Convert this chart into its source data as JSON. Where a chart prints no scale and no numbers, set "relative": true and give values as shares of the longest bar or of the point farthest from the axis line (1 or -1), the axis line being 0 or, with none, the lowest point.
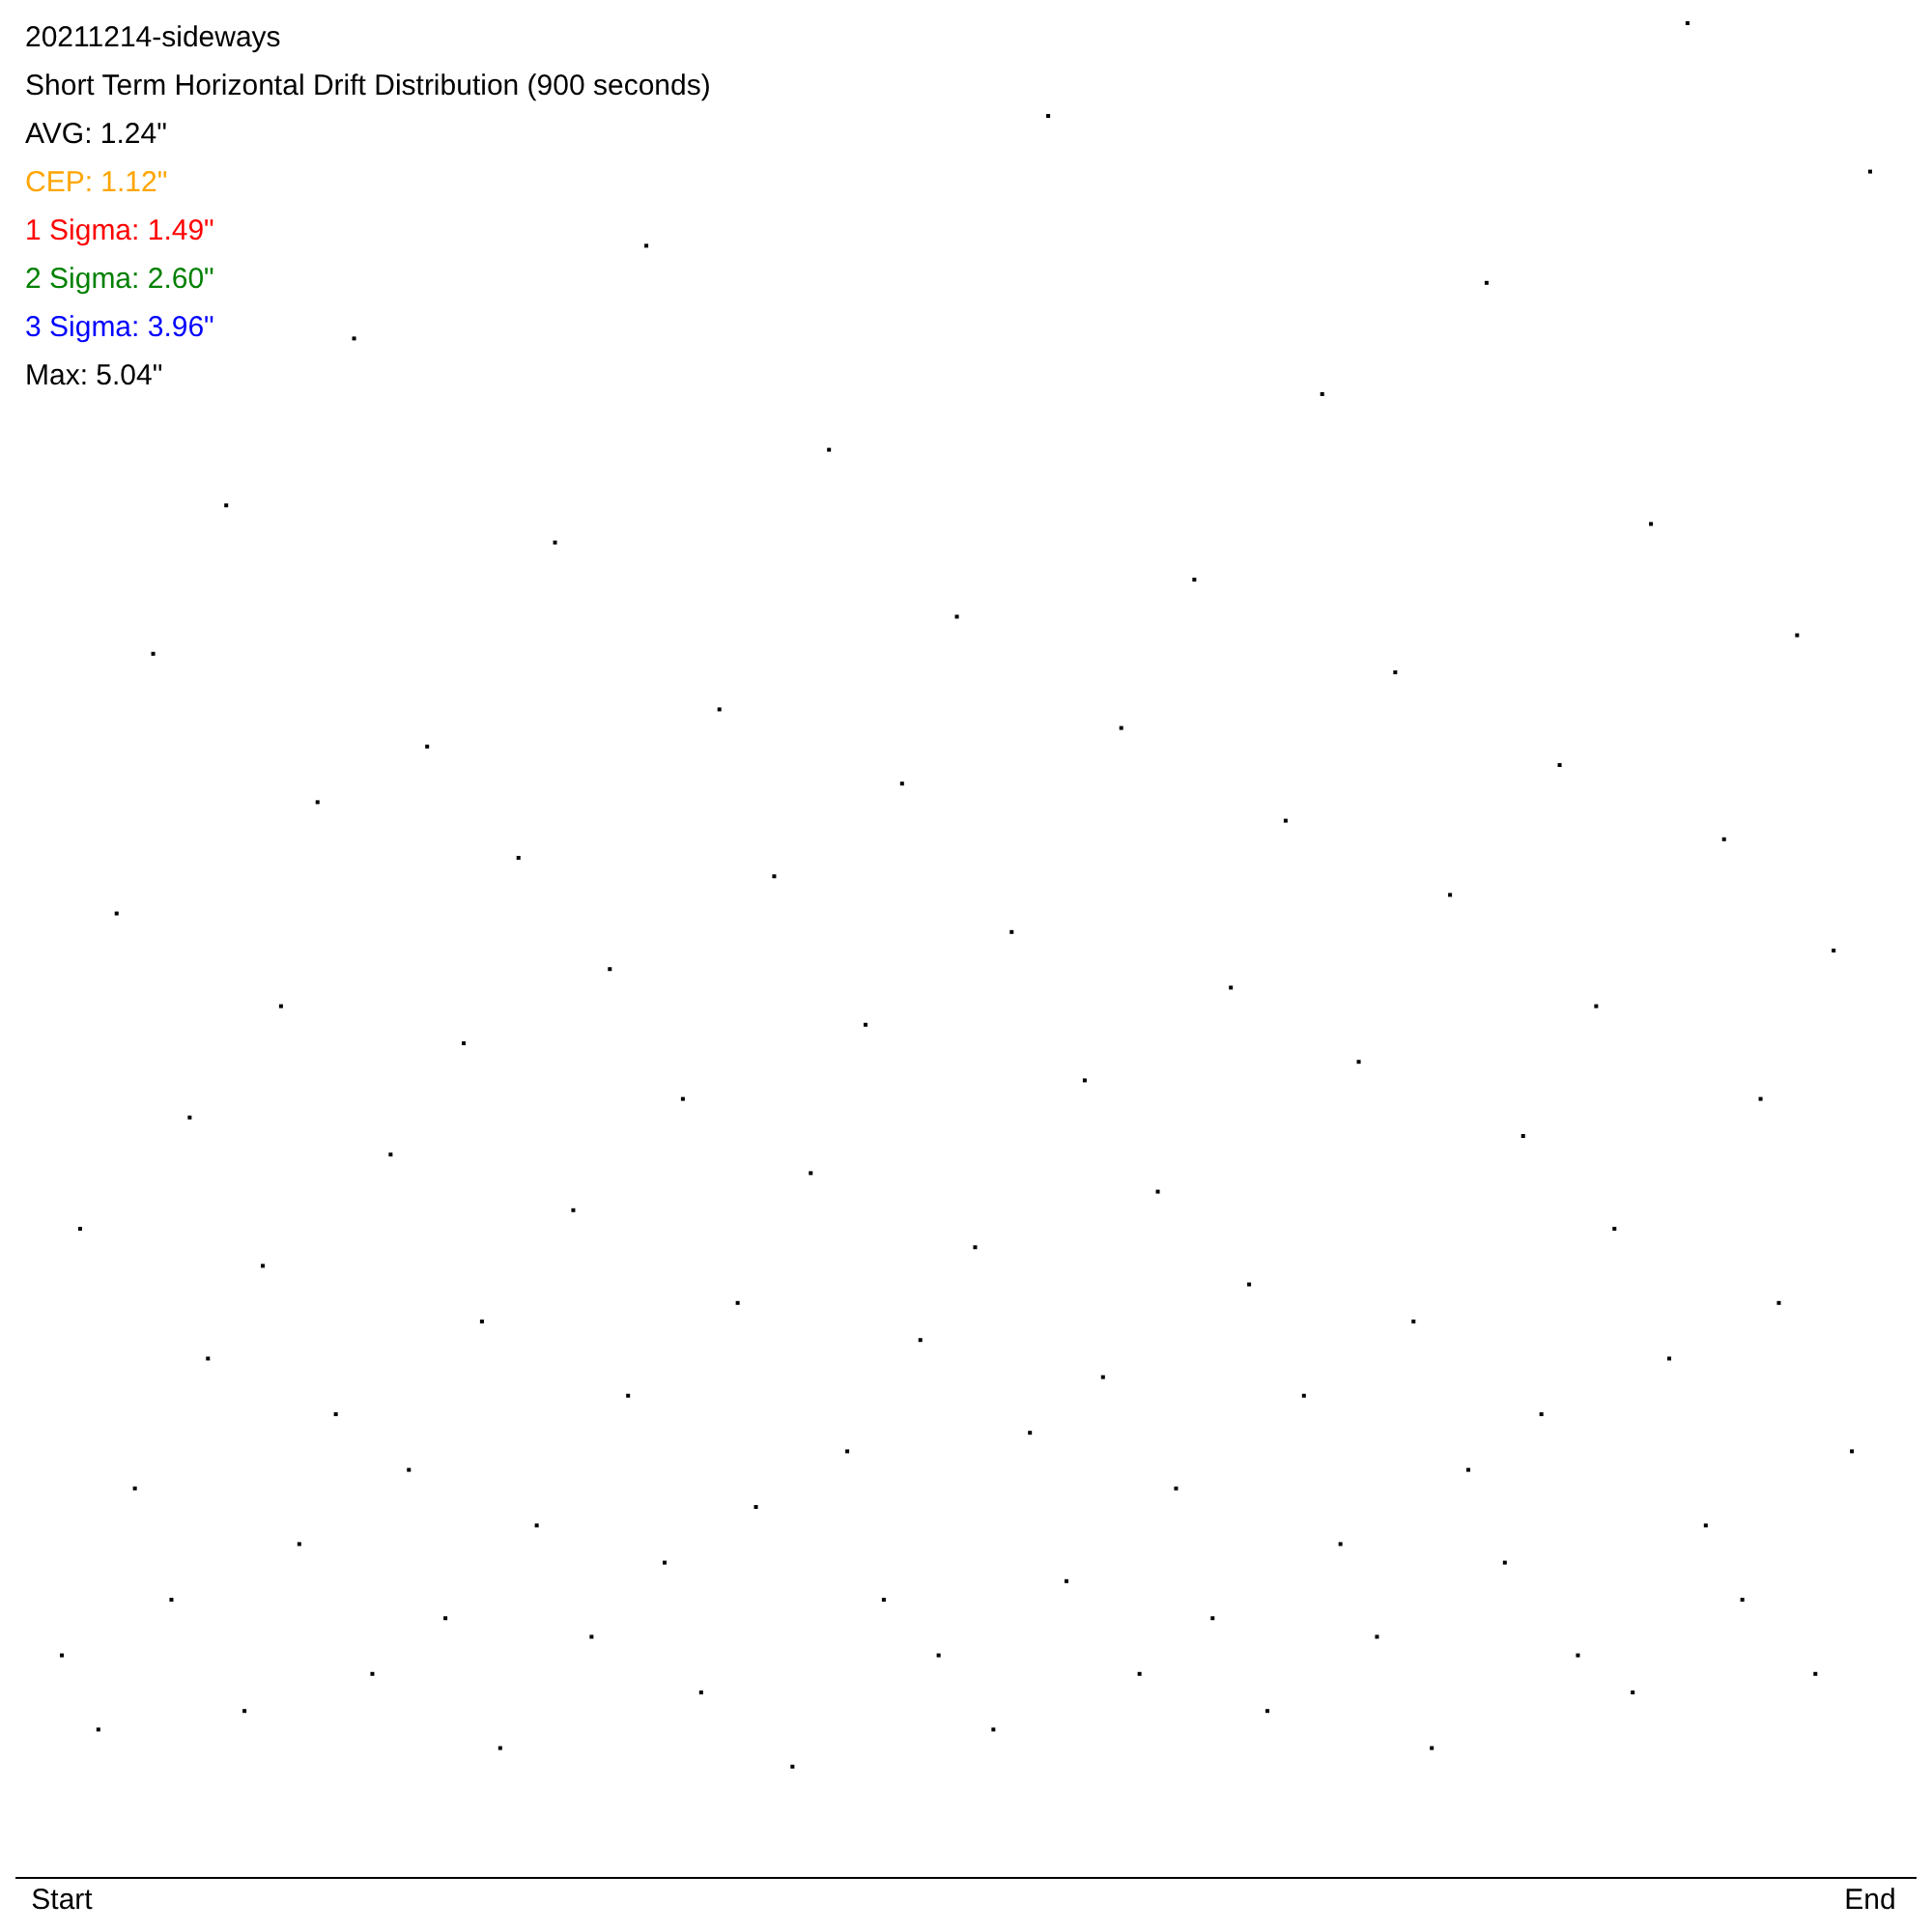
{
  "chart_data": {
    "type": "scatter",
    "title": "20211214-sideways",
    "subtitle": "Short Term Horizontal Drift Distribution (900 seconds)",
    "annotations": [
      "AVG: 1.24\"",
      "CEP: 1.12\"",
      "1 Sigma: 1.49\"",
      "2 Sigma: 2.60\"",
      "3 Sigma: 3.96\"",
      "Max: 5.04\""
    ],
    "relative": true,
    "marker": "square",
    "categories": [
      "Start",
      null,
      null,
      null,
      null,
      null,
      null,
      null,
      null,
      null,
      null,
      null,
      null,
      null,
      null,
      null,
      null,
      null,
      null,
      null,
      null,
      null,
      null,
      null,
      null,
      null,
      null,
      null,
      null,
      null,
      null,
      null,
      null,
      null,
      null,
      null,
      null,
      null,
      null,
      null,
      null,
      null,
      null,
      null,
      null,
      null,
      null,
      null,
      null,
      null,
      null,
      null,
      null,
      null,
      null,
      null,
      null,
      null,
      null,
      null,
      null,
      null,
      null,
      null,
      null,
      null,
      null,
      null,
      null,
      null,
      null,
      null,
      null,
      null,
      null,
      null,
      null,
      null,
      null,
      null,
      null,
      null,
      null,
      null,
      null,
      null,
      null,
      null,
      null,
      null,
      null,
      null,
      null,
      null,
      null,
      null,
      null,
      null,
      null,
      "End"
    ],
    "series": [
      {
        "color": "#000000",
        "values": [
          0.12,
          0.35,
          0.08,
          0.52,
          0.21,
          0.66,
          0.15,
          0.41,
          0.28,
          0.74,
          0.09,
          0.33,
          0.47,
          0.18,
          0.58,
          0.25,
          0.83,
          0.11,
          0.39,
          0.22,
          0.61,
          0.14,
          0.45,
          0.3,
          0.07,
          0.55,
          0.19,
          0.72,
          0.36,
          0.13,
          0.49,
          0.26,
          0.88,
          0.17,
          0.42,
          0.1,
          0.63,
          0.31,
          0.2,
          0.54,
          0.06,
          0.38,
          0.77,
          0.23,
          0.46,
          0.15,
          0.59,
          0.29,
          0.12,
          0.68,
          0.34,
          0.08,
          0.51,
          0.24,
          0.95,
          0.16,
          0.43,
          0.27,
          0.62,
          0.11,
          0.37,
          0.21,
          0.7,
          0.14,
          0.48,
          0.32,
          0.09,
          0.57,
          0.26,
          0.8,
          0.18,
          0.44,
          0.13,
          0.65,
          0.3,
          0.07,
          0.53,
          0.22,
          0.86,
          0.17,
          0.4,
          0.25,
          0.6,
          0.12,
          0.47,
          0.35,
          0.1,
          0.73,
          0.28,
          1.0,
          0.19,
          0.56,
          0.15,
          0.42,
          0.31,
          0.67,
          0.11,
          0.5,
          0.23,
          0.92
        ]
      }
    ]
  }
}
